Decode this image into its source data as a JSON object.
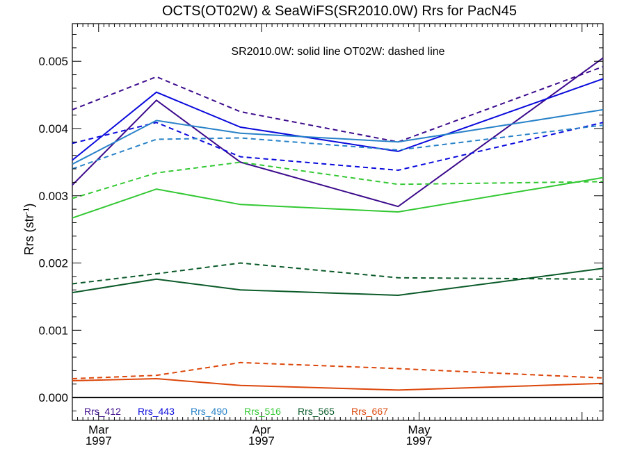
{
  "chart_data": {
    "type": "line",
    "title": "OCTS(OT02W) & SeaWiFS(SR2010.0W)  Rrs for PacN45",
    "annotation": "SR2010.0W: solid line   OT02W: dashed line",
    "ylabel_main": "Rrs (str",
    "ylabel_sup": "-1",
    "ylabel_close": ")",
    "xlabel": "",
    "x_tick_labels": [
      {
        "month": "Mar",
        "year": "1997",
        "date": "1997-03-01"
      },
      {
        "month": "Apr",
        "year": "1997",
        "date": "1997-04-01"
      },
      {
        "month": "May",
        "year": "1997",
        "date": "1997-05-01"
      }
    ],
    "y_tick_labels": [
      "0.000",
      "0.001",
      "0.002",
      "0.003",
      "0.004",
      "0.005"
    ],
    "y_ticks": [
      0,
      0.001,
      0.002,
      0.003,
      0.004,
      0.005
    ],
    "ylim": [
      -0.00034,
      0.00556
    ],
    "xlim": [
      "1997-02-24",
      "1997-06-05"
    ],
    "zero_line": true,
    "grid": false,
    "legend_position": "bottom-left",
    "x": [
      "1997-02-24",
      "1997-03-12",
      "1997-03-28",
      "1997-04-27",
      "1997-06-05"
    ],
    "series": [
      {
        "name": "Rrs_412",
        "color": "#3c0a8c",
        "solid": [
          0.00316,
          0.00442,
          0.0035,
          0.00284,
          0.00505
        ],
        "dashed": [
          0.00428,
          0.00477,
          0.00425,
          0.0038,
          0.00492
        ]
      },
      {
        "name": "Rrs_443",
        "color": "#0a0adc",
        "solid": [
          0.00353,
          0.00454,
          0.00402,
          0.00366,
          0.00474
        ],
        "dashed": [
          0.00378,
          0.00409,
          0.00358,
          0.00338,
          0.00409
        ]
      },
      {
        "name": "Rrs_490",
        "color": "#2882c8",
        "solid": [
          0.00347,
          0.00412,
          0.00393,
          0.0038,
          0.00428
        ],
        "dashed": [
          0.0034,
          0.00384,
          0.00386,
          0.00368,
          0.00405
        ]
      },
      {
        "name": "Rrs_516",
        "color": "#32c832",
        "solid": [
          0.00267,
          0.0031,
          0.00287,
          0.00276,
          0.00327
        ],
        "dashed": [
          0.00296,
          0.00334,
          0.0035,
          0.00317,
          0.00321
        ]
      },
      {
        "name": "Rrs_565",
        "color": "#0a5a28",
        "solid": [
          0.00156,
          0.00176,
          0.0016,
          0.00152,
          0.00192
        ],
        "dashed": [
          0.00169,
          0.00184,
          0.002,
          0.00178,
          0.00176
        ]
      },
      {
        "name": "Rrs_667",
        "color": "#dc460a",
        "solid": [
          0.00025,
          0.00028,
          0.00018,
          0.00011,
          0.00021
        ],
        "dashed": [
          0.00028,
          0.00033,
          0.00052,
          0.00043,
          0.00029
        ]
      }
    ]
  }
}
